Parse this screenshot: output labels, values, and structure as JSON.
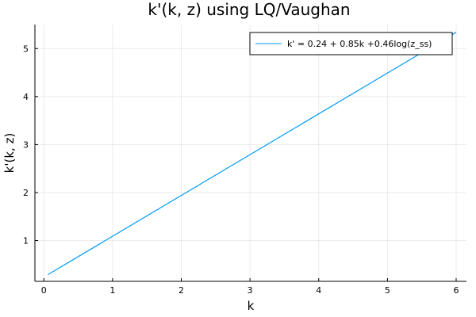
{
  "chart_data": {
    "type": "line",
    "title": "k'(k, z) using LQ/Vaughan",
    "xlabel": "k",
    "ylabel": "k'(k, z)",
    "xlim": [
      -0.13,
      6.15
    ],
    "ylim": [
      0.15,
      5.5
    ],
    "xticks": [
      0,
      1,
      2,
      3,
      4,
      5,
      6
    ],
    "yticks": [
      1,
      2,
      3,
      4,
      5
    ],
    "grid": true,
    "legend_position": "top-right",
    "series": [
      {
        "name": "k' = 0.24 + 0.85k +0.46log(z_ss)",
        "color": "#009AFA",
        "x": [
          0.06,
          6.0
        ],
        "y": [
          0.29,
          5.34
        ]
      }
    ]
  }
}
